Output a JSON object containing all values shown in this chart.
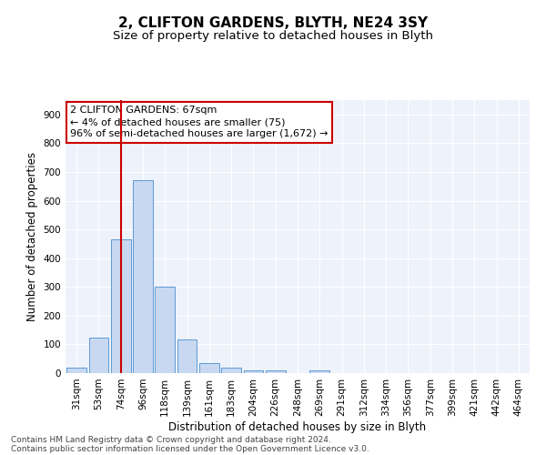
{
  "title": "2, CLIFTON GARDENS, BLYTH, NE24 3SY",
  "subtitle": "Size of property relative to detached houses in Blyth",
  "xlabel": "Distribution of detached houses by size in Blyth",
  "ylabel": "Number of detached properties",
  "footnote1": "Contains HM Land Registry data © Crown copyright and database right 2024.",
  "footnote2": "Contains public sector information licensed under the Open Government Licence v3.0.",
  "categories": [
    "31sqm",
    "53sqm",
    "74sqm",
    "96sqm",
    "118sqm",
    "139sqm",
    "161sqm",
    "183sqm",
    "204sqm",
    "226sqm",
    "248sqm",
    "269sqm",
    "291sqm",
    "312sqm",
    "334sqm",
    "356sqm",
    "377sqm",
    "399sqm",
    "421sqm",
    "442sqm",
    "464sqm"
  ],
  "values": [
    18,
    125,
    465,
    670,
    302,
    118,
    35,
    18,
    10,
    8,
    0,
    10,
    0,
    0,
    0,
    0,
    0,
    0,
    0,
    0,
    0
  ],
  "bar_color": "#c8d8f0",
  "bar_edge_color": "#5b9bd5",
  "vline_x_index": 2,
  "vline_color": "#cc0000",
  "annotation_line1": "2 CLIFTON GARDENS: 67sqm",
  "annotation_line2": "← 4% of detached houses are smaller (75)",
  "annotation_line3": "96% of semi-detached houses are larger (1,672) →",
  "annotation_box_color": "#ffffff",
  "annotation_box_edge": "#cc0000",
  "ylim": [
    0,
    950
  ],
  "yticks": [
    0,
    100,
    200,
    300,
    400,
    500,
    600,
    700,
    800,
    900
  ],
  "fig_bg_color": "#ffffff",
  "plot_bg_color": "#eef2fb",
  "grid_color": "#ffffff",
  "title_fontsize": 11,
  "subtitle_fontsize": 9.5,
  "axis_label_fontsize": 8.5,
  "tick_fontsize": 7.5,
  "annotation_fontsize": 8,
  "footnote_fontsize": 6.5
}
